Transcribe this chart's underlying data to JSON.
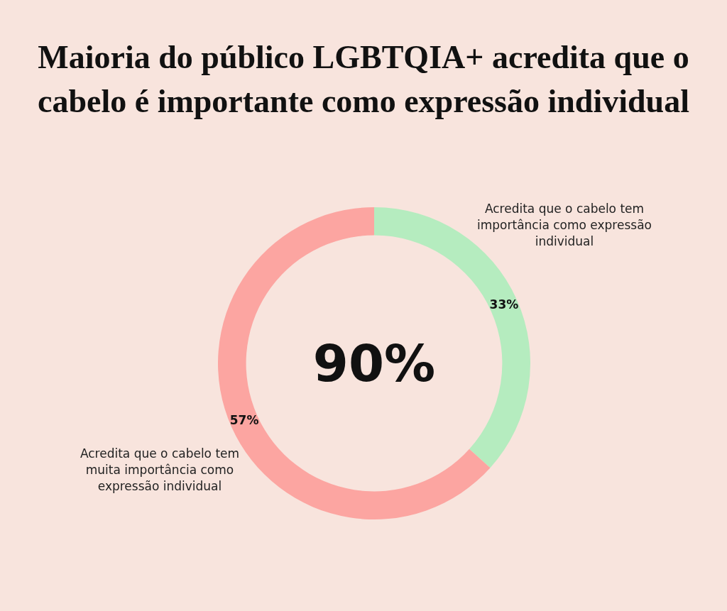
{
  "chart_data": {
    "type": "donut",
    "title": "Maioria do público LGBTQIA+ acredita que o cabelo é importante como expressão individual",
    "categories": [
      "Acredita que o cabelo tem importância como expressão individual",
      "Acredita que o cabelo tem muita importância como expressão individual"
    ],
    "values": [
      33,
      57
    ],
    "colors": [
      "#b5ecbf",
      "#fca5a1"
    ],
    "value_labels": [
      "33%",
      "57%"
    ],
    "annotations": [
      "90%"
    ],
    "legend": false
  }
}
